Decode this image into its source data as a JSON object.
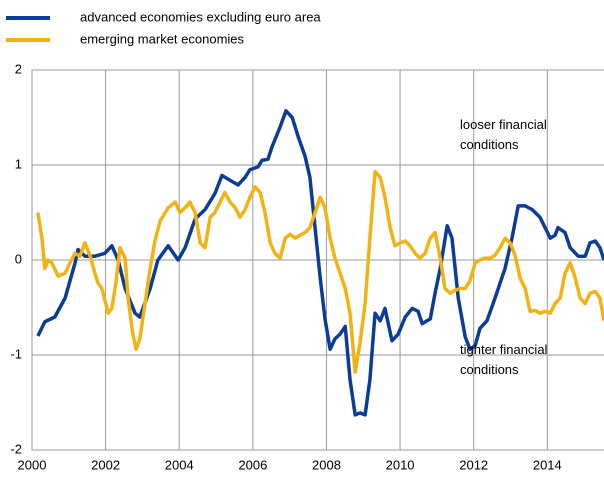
{
  "chart_data": {
    "type": "line",
    "annotations": [
      "looser financial conditions",
      "tighter financial conditions"
    ],
    "xlim": [
      2000,
      2015.54
    ],
    "xticks": [
      2000,
      2002,
      2004,
      2006,
      2008,
      2010,
      2012,
      2014
    ],
    "ylim": [
      -2,
      2
    ],
    "yticks": [
      -2,
      -1,
      0,
      1,
      2
    ],
    "grid": true,
    "legend": "top",
    "series": [
      {
        "name": "advanced economies excluding euro area",
        "color": "#0b3d97",
        "x": [
          2000.16,
          2000.35,
          2000.62,
          2000.9,
          2001.17,
          2001.25,
          2001.44,
          2001.71,
          2001.98,
          2002.17,
          2002.34,
          2002.53,
          2002.8,
          2002.93,
          2003.21,
          2003.42,
          2003.7,
          2003.97,
          2004.16,
          2004.43,
          2004.7,
          2004.97,
          2005.16,
          2005.38,
          2005.6,
          2005.79,
          2005.92,
          2006.14,
          2006.25,
          2006.41,
          2006.52,
          2006.74,
          2006.9,
          2007.07,
          2007.23,
          2007.42,
          2007.55,
          2007.69,
          2007.83,
          2007.96,
          2008.1,
          2008.23,
          2008.37,
          2008.51,
          2008.64,
          2008.78,
          2008.91,
          2009.05,
          2009.18,
          2009.32,
          2009.46,
          2009.59,
          2009.78,
          2009.95,
          2010.14,
          2010.33,
          2010.49,
          2010.6,
          2010.82,
          2010.95,
          2011.09,
          2011.28,
          2011.41,
          2011.58,
          2011.77,
          2011.9,
          2012.04,
          2012.17,
          2012.36,
          2012.58,
          2012.85,
          2013.04,
          2013.21,
          2013.4,
          2013.59,
          2013.8,
          2013.94,
          2014.08,
          2014.21,
          2014.29,
          2014.48,
          2014.62,
          2014.84,
          2015.03,
          2015.16,
          2015.3,
          2015.43,
          2015.54
        ],
        "values": [
          -0.8,
          -0.65,
          -0.6,
          -0.4,
          -0.03,
          0.11,
          0.04,
          0.04,
          0.07,
          0.15,
          0.0,
          -0.3,
          -0.56,
          -0.6,
          -0.3,
          0.0,
          0.15,
          0.0,
          0.13,
          0.43,
          0.53,
          0.7,
          0.89,
          0.84,
          0.79,
          0.87,
          0.95,
          0.98,
          1.05,
          1.06,
          1.19,
          1.4,
          1.57,
          1.5,
          1.3,
          1.09,
          0.87,
          0.34,
          -0.19,
          -0.62,
          -0.94,
          -0.83,
          -0.78,
          -0.7,
          -1.26,
          -1.63,
          -1.61,
          -1.63,
          -1.26,
          -0.56,
          -0.64,
          -0.51,
          -0.85,
          -0.78,
          -0.6,
          -0.51,
          -0.54,
          -0.67,
          -0.62,
          -0.35,
          -0.09,
          0.36,
          0.23,
          -0.4,
          -0.81,
          -0.94,
          -0.9,
          -0.72,
          -0.64,
          -0.4,
          -0.09,
          0.23,
          0.57,
          0.57,
          0.53,
          0.45,
          0.34,
          0.23,
          0.26,
          0.34,
          0.29,
          0.13,
          0.04,
          0.04,
          0.18,
          0.2,
          0.13,
          0.0
        ]
      },
      {
        "name": "emerging market economies",
        "color": "#f3b212",
        "x": [
          2000.16,
          2000.27,
          2000.35,
          2000.43,
          2000.54,
          2000.71,
          2000.9,
          2001.03,
          2001.17,
          2001.3,
          2001.44,
          2001.58,
          2001.71,
          2001.79,
          2001.9,
          2002.07,
          2002.17,
          2002.28,
          2002.39,
          2002.53,
          2002.61,
          2002.74,
          2002.83,
          2002.93,
          2003.07,
          2003.21,
          2003.34,
          2003.48,
          2003.7,
          2003.89,
          2004.02,
          2004.16,
          2004.29,
          2004.43,
          2004.57,
          2004.7,
          2004.84,
          2004.97,
          2005.11,
          2005.24,
          2005.38,
          2005.52,
          2005.65,
          2005.79,
          2005.92,
          2006.06,
          2006.2,
          2006.33,
          2006.47,
          2006.6,
          2006.74,
          2006.88,
          2007.01,
          2007.15,
          2007.28,
          2007.42,
          2007.55,
          2007.69,
          2007.83,
          2007.96,
          2008.1,
          2008.23,
          2008.37,
          2008.51,
          2008.64,
          2008.78,
          2008.91,
          2009.05,
          2009.18,
          2009.32,
          2009.46,
          2009.59,
          2009.73,
          2009.86,
          2010.0,
          2010.14,
          2010.27,
          2010.41,
          2010.54,
          2010.68,
          2010.82,
          2010.95,
          2011.09,
          2011.22,
          2011.36,
          2011.49,
          2011.63,
          2011.77,
          2011.9,
          2012.04,
          2012.17,
          2012.31,
          2012.45,
          2012.58,
          2012.72,
          2012.85,
          2012.99,
          2013.13,
          2013.26,
          2013.4,
          2013.53,
          2013.67,
          2013.8,
          2013.94,
          2014.08,
          2014.21,
          2014.35,
          2014.48,
          2014.62,
          2014.76,
          2014.89,
          2015.03,
          2015.16,
          2015.3,
          2015.43,
          2015.54
        ],
        "values": [
          0.5,
          0.23,
          -0.09,
          0.0,
          -0.03,
          -0.17,
          -0.14,
          -0.03,
          0.07,
          0.04,
          0.18,
          0.04,
          -0.14,
          -0.24,
          -0.3,
          -0.56,
          -0.51,
          -0.24,
          0.13,
          0.02,
          -0.4,
          -0.78,
          -0.94,
          -0.83,
          -0.46,
          -0.09,
          0.2,
          0.41,
          0.55,
          0.61,
          0.5,
          0.55,
          0.61,
          0.5,
          0.18,
          0.13,
          0.45,
          0.5,
          0.61,
          0.71,
          0.61,
          0.55,
          0.45,
          0.53,
          0.66,
          0.77,
          0.71,
          0.5,
          0.18,
          0.07,
          0.02,
          0.23,
          0.27,
          0.23,
          0.26,
          0.29,
          0.34,
          0.5,
          0.66,
          0.55,
          0.23,
          0.02,
          -0.14,
          -0.3,
          -0.56,
          -1.18,
          -0.88,
          -0.46,
          0.23,
          0.93,
          0.87,
          0.66,
          0.34,
          0.15,
          0.18,
          0.2,
          0.15,
          0.07,
          0.02,
          0.07,
          0.23,
          0.29,
          0.02,
          -0.3,
          -0.35,
          -0.32,
          -0.3,
          -0.3,
          -0.22,
          -0.03,
          0.0,
          0.02,
          0.02,
          0.05,
          0.13,
          0.23,
          0.18,
          0.04,
          -0.19,
          -0.3,
          -0.54,
          -0.53,
          -0.56,
          -0.54,
          -0.56,
          -0.46,
          -0.4,
          -0.14,
          -0.03,
          -0.19,
          -0.4,
          -0.46,
          -0.35,
          -0.33,
          -0.4,
          -0.64
        ]
      }
    ]
  }
}
